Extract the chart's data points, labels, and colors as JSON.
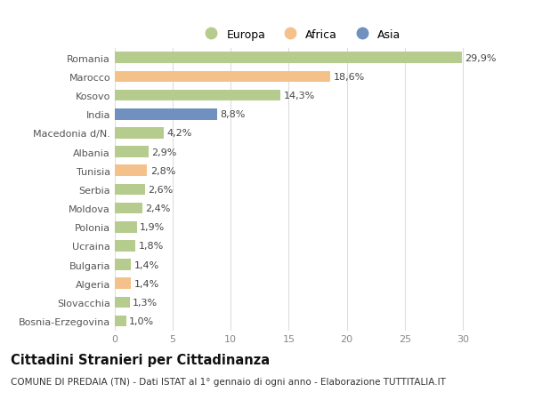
{
  "countries": [
    "Romania",
    "Marocco",
    "Kosovo",
    "India",
    "Macedonia d/N.",
    "Albania",
    "Tunisia",
    "Serbia",
    "Moldova",
    "Polonia",
    "Ucraina",
    "Bulgaria",
    "Algeria",
    "Slovacchia",
    "Bosnia-Erzegovina"
  ],
  "values": [
    29.9,
    18.6,
    14.3,
    8.8,
    4.2,
    2.9,
    2.8,
    2.6,
    2.4,
    1.9,
    1.8,
    1.4,
    1.4,
    1.3,
    1.0
  ],
  "labels": [
    "29,9%",
    "18,6%",
    "14,3%",
    "8,8%",
    "4,2%",
    "2,9%",
    "2,8%",
    "2,6%",
    "2,4%",
    "1,9%",
    "1,8%",
    "1,4%",
    "1,4%",
    "1,3%",
    "1,0%"
  ],
  "continent": [
    "Europa",
    "Africa",
    "Europa",
    "Asia",
    "Europa",
    "Europa",
    "Africa",
    "Europa",
    "Europa",
    "Europa",
    "Europa",
    "Europa",
    "Africa",
    "Europa",
    "Europa"
  ],
  "colors": {
    "Europa": "#b5cc8e",
    "Africa": "#f5c18a",
    "Asia": "#7090c0"
  },
  "xlim": [
    0,
    32
  ],
  "xticks": [
    0,
    5,
    10,
    15,
    20,
    25,
    30
  ],
  "background_color": "#ffffff",
  "plot_bg_color": "#ffffff",
  "grid_color": "#dddddd",
  "bar_height": 0.6,
  "label_fontsize": 8.0,
  "tick_fontsize": 8.0,
  "title": "Cittadini Stranieri per Cittadinanza",
  "subtitle": "COMUNE DI PREDAIA (TN) - Dati ISTAT al 1° gennaio di ogni anno - Elaborazione TUTTITALIA.IT",
  "title_fontsize": 10.5,
  "subtitle_fontsize": 7.5
}
